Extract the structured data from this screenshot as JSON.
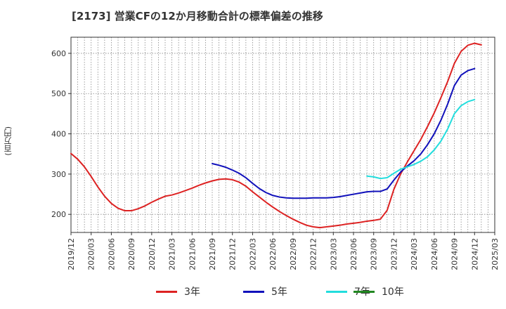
{
  "title": "[2173]  営業CFの12か月移動合計の標準偏差の推移",
  "ylabel": "(百万円)",
  "chart_data": {
    "type": "line",
    "title": "[2173]  営業CFの12か月移動合計の標準偏差の推移",
    "ylabel": "(百万円)",
    "ylim": [
      155,
      640
    ],
    "yticks": [
      200,
      300,
      400,
      500,
      600
    ],
    "xlim": [
      "2019/12",
      "2025/03"
    ],
    "xticks": [
      "2019/12",
      "2020/03",
      "2020/06",
      "2020/09",
      "2020/12",
      "2021/03",
      "2021/06",
      "2021/09",
      "2021/12",
      "2022/03",
      "2022/06",
      "2022/09",
      "2022/12",
      "2023/03",
      "2023/06",
      "2023/09",
      "2023/12",
      "2024/03",
      "2024/06",
      "2024/09",
      "2024/12",
      "2025/03"
    ],
    "grid": true,
    "legend_position": "bottom",
    "series": [
      {
        "name": "3年",
        "color": "#dd2222",
        "points": [
          [
            "2019/12",
            351
          ],
          [
            "2020/01",
            337
          ],
          [
            "2020/02",
            318
          ],
          [
            "2020/03",
            294
          ],
          [
            "2020/04",
            268
          ],
          [
            "2020/05",
            245
          ],
          [
            "2020/06",
            227
          ],
          [
            "2020/07",
            215
          ],
          [
            "2020/08",
            209
          ],
          [
            "2020/09",
            209
          ],
          [
            "2020/10",
            214
          ],
          [
            "2020/11",
            221
          ],
          [
            "2020/12",
            230
          ],
          [
            "2021/01",
            238
          ],
          [
            "2021/02",
            245
          ],
          [
            "2021/03",
            248
          ],
          [
            "2021/04",
            253
          ],
          [
            "2021/05",
            259
          ],
          [
            "2021/06",
            265
          ],
          [
            "2021/07",
            272
          ],
          [
            "2021/08",
            278
          ],
          [
            "2021/09",
            283
          ],
          [
            "2021/10",
            287
          ],
          [
            "2021/11",
            288
          ],
          [
            "2021/12",
            286
          ],
          [
            "2022/01",
            280
          ],
          [
            "2022/02",
            270
          ],
          [
            "2022/03",
            256
          ],
          [
            "2022/04",
            243
          ],
          [
            "2022/05",
            230
          ],
          [
            "2022/06",
            218
          ],
          [
            "2022/07",
            207
          ],
          [
            "2022/08",
            197
          ],
          [
            "2022/09",
            188
          ],
          [
            "2022/10",
            180
          ],
          [
            "2022/11",
            173
          ],
          [
            "2022/12",
            169
          ],
          [
            "2023/01",
            167
          ],
          [
            "2023/02",
            169
          ],
          [
            "2023/03",
            171
          ],
          [
            "2023/04",
            173
          ],
          [
            "2023/05",
            176
          ],
          [
            "2023/06",
            178
          ],
          [
            "2023/07",
            180
          ],
          [
            "2023/08",
            183
          ],
          [
            "2023/09",
            185
          ],
          [
            "2023/10",
            188
          ],
          [
            "2023/11",
            210
          ],
          [
            "2023/12",
            262
          ],
          [
            "2024/01",
            300
          ],
          [
            "2024/02",
            330
          ],
          [
            "2024/03",
            358
          ],
          [
            "2024/04",
            386
          ],
          [
            "2024/05",
            418
          ],
          [
            "2024/06",
            452
          ],
          [
            "2024/07",
            490
          ],
          [
            "2024/08",
            530
          ],
          [
            "2024/09",
            575
          ],
          [
            "2024/10",
            605
          ],
          [
            "2024/11",
            620
          ],
          [
            "2024/12",
            625
          ],
          [
            "2025/01",
            621
          ]
        ]
      },
      {
        "name": "5年",
        "color": "#1111bb",
        "points": [
          [
            "2021/09",
            326
          ],
          [
            "2021/10",
            322
          ],
          [
            "2021/11",
            317
          ],
          [
            "2021/12",
            310
          ],
          [
            "2022/01",
            302
          ],
          [
            "2022/02",
            291
          ],
          [
            "2022/03",
            277
          ],
          [
            "2022/04",
            264
          ],
          [
            "2022/05",
            254
          ],
          [
            "2022/06",
            247
          ],
          [
            "2022/07",
            243
          ],
          [
            "2022/08",
            241
          ],
          [
            "2022/09",
            240
          ],
          [
            "2022/10",
            240
          ],
          [
            "2022/11",
            240
          ],
          [
            "2022/12",
            241
          ],
          [
            "2023/01",
            241
          ],
          [
            "2023/02",
            241
          ],
          [
            "2023/03",
            242
          ],
          [
            "2023/04",
            244
          ],
          [
            "2023/05",
            247
          ],
          [
            "2023/06",
            250
          ],
          [
            "2023/07",
            253
          ],
          [
            "2023/08",
            256
          ],
          [
            "2023/09",
            257
          ],
          [
            "2023/10",
            257
          ],
          [
            "2023/11",
            263
          ],
          [
            "2023/12",
            285
          ],
          [
            "2024/01",
            305
          ],
          [
            "2024/02",
            320
          ],
          [
            "2024/03",
            333
          ],
          [
            "2024/04",
            350
          ],
          [
            "2024/05",
            373
          ],
          [
            "2024/06",
            400
          ],
          [
            "2024/07",
            434
          ],
          [
            "2024/08",
            474
          ],
          [
            "2024/09",
            520
          ],
          [
            "2024/10",
            546
          ],
          [
            "2024/11",
            557
          ],
          [
            "2024/12",
            562
          ]
        ]
      },
      {
        "name": "7年",
        "color": "#22dddd",
        "points": [
          [
            "2023/08",
            295
          ],
          [
            "2023/09",
            293
          ],
          [
            "2023/10",
            289
          ],
          [
            "2023/11",
            291
          ],
          [
            "2023/12",
            302
          ],
          [
            "2024/01",
            312
          ],
          [
            "2024/02",
            318
          ],
          [
            "2024/03",
            324
          ],
          [
            "2024/04",
            332
          ],
          [
            "2024/05",
            343
          ],
          [
            "2024/06",
            360
          ],
          [
            "2024/07",
            382
          ],
          [
            "2024/08",
            412
          ],
          [
            "2024/09",
            450
          ],
          [
            "2024/10",
            470
          ],
          [
            "2024/11",
            480
          ],
          [
            "2024/12",
            485
          ]
        ]
      },
      {
        "name": "10年",
        "color": "#228822",
        "points": []
      }
    ]
  }
}
